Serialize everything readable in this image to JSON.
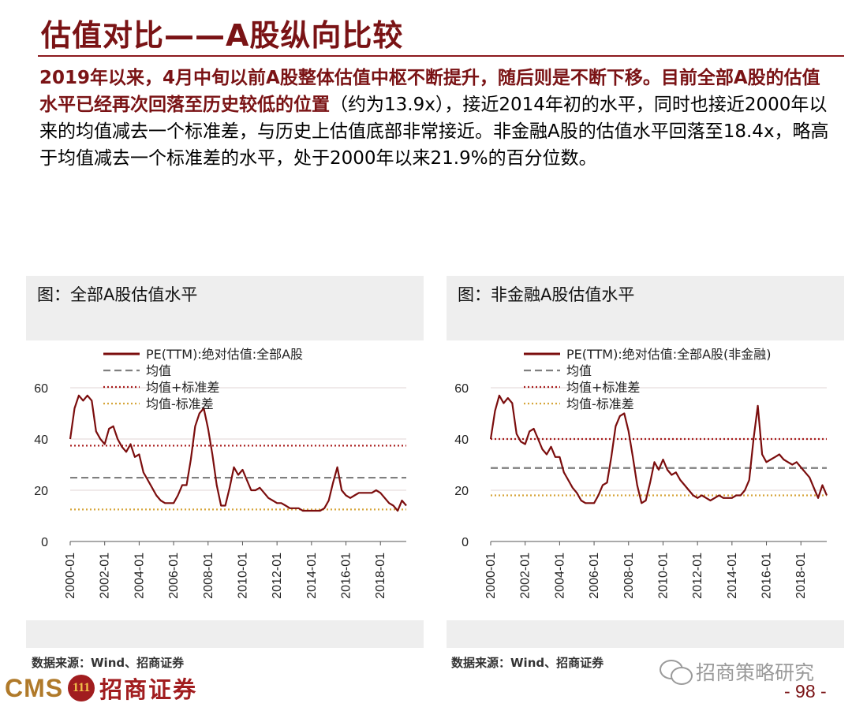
{
  "header": {
    "title": "估值对比——A股纵向比较"
  },
  "paragraph": {
    "highlight": "2019年以来，4月中旬以前A股整体估值中枢不断提升，随后则是不断下移。目前全部A股的估值水平已经再次回落至历史较低的位置",
    "rest": "（约为13.9x），接近2014年初的水平，同时也接近2000年以来的均值减去一个标准差，与历史上估值底部非常接近。非金融A股的估值水平回落至18.4x，略高于均值减去一个标准差的水平，处于2000年以来21.9%的百分位数。"
  },
  "panels": {
    "left": {
      "title": "图：全部A股估值水平",
      "source": "数据来源：Wind、招商证券"
    },
    "right": {
      "title": "图：非金融A股估值水平",
      "source": "数据来源：Wind、招商证券"
    }
  },
  "footer": {
    "logo_latin": "CMS",
    "logo_badge": "111",
    "logo_chinese": "招商证券",
    "wechat_account": "招商策略研究",
    "page_number": "- 98 -"
  },
  "colors": {
    "brand": "#7a1315",
    "series_pe": "#7b0d0d",
    "mean_line": "#7f7f7f",
    "mean_plus_std": "#a81c1c",
    "mean_minus_std": "#d6a53a"
  },
  "chart_data": [
    {
      "type": "line",
      "title": "图：全部A股估值水平",
      "x_tick_labels": [
        "2000-01",
        "2002-01",
        "2004-01",
        "2006-01",
        "2008-01",
        "2010-01",
        "2012-01",
        "2014-01",
        "2016-01",
        "2018-01"
      ],
      "xlim": [
        2000.0,
        2019.5
      ],
      "ylim": [
        0,
        60
      ],
      "y_ticks": [
        0,
        20,
        40,
        60
      ],
      "grid": "horizontal",
      "legend_position": "top-left",
      "series": [
        {
          "name": "PE(TTM):绝对估值:全部A股",
          "style": "solid",
          "x": [
            2000.0,
            2000.25,
            2000.5,
            2000.75,
            2001.0,
            2001.25,
            2001.5,
            2001.75,
            2002.0,
            2002.25,
            2002.5,
            2002.75,
            2003.0,
            2003.25,
            2003.5,
            2003.75,
            2004.0,
            2004.25,
            2004.5,
            2004.75,
            2005.0,
            2005.25,
            2005.5,
            2005.75,
            2006.0,
            2006.25,
            2006.5,
            2006.75,
            2007.0,
            2007.25,
            2007.5,
            2007.75,
            2008.0,
            2008.25,
            2008.5,
            2008.75,
            2009.0,
            2009.25,
            2009.5,
            2009.75,
            2010.0,
            2010.25,
            2010.5,
            2010.75,
            2011.0,
            2011.25,
            2011.5,
            2011.75,
            2012.0,
            2012.25,
            2012.5,
            2012.75,
            2013.0,
            2013.25,
            2013.5,
            2013.75,
            2014.0,
            2014.25,
            2014.5,
            2014.75,
            2015.0,
            2015.25,
            2015.5,
            2015.75,
            2016.0,
            2016.25,
            2016.5,
            2016.75,
            2017.0,
            2017.25,
            2017.5,
            2017.75,
            2018.0,
            2018.25,
            2018.5,
            2018.75,
            2019.0,
            2019.25,
            2019.5
          ],
          "values": [
            40,
            52,
            57,
            55,
            57,
            55,
            43,
            40,
            38,
            44,
            45,
            40,
            37,
            35,
            38,
            33,
            34,
            27,
            24,
            21,
            18,
            16,
            15,
            15,
            15,
            18,
            22,
            22,
            32,
            45,
            50,
            52,
            44,
            34,
            22,
            14,
            14,
            21,
            29,
            26,
            28,
            24,
            20,
            20,
            21,
            19,
            17,
            16,
            15,
            15,
            14,
            13,
            13,
            13,
            12,
            12,
            12,
            12,
            12,
            13,
            16,
            23,
            29,
            20,
            18,
            17,
            18,
            19,
            19,
            19,
            19,
            20,
            19,
            17,
            15,
            14,
            12,
            16,
            14
          ]
        },
        {
          "name": "均值",
          "style": "dashed",
          "values": [
            24.9
          ]
        },
        {
          "name": "均值+标准差",
          "style": "dotted",
          "values": [
            37.4
          ]
        },
        {
          "name": "均值-标准差",
          "style": "dotted",
          "values": [
            12.5
          ]
        }
      ]
    },
    {
      "type": "line",
      "title": "图：非金融A股估值水平",
      "x_tick_labels": [
        "2000-01",
        "2002-01",
        "2004-01",
        "2006-01",
        "2008-01",
        "2010-01",
        "2012-01",
        "2014-01",
        "2016-01",
        "2018-01"
      ],
      "xlim": [
        2000.0,
        2019.5
      ],
      "ylim": [
        0,
        60
      ],
      "y_ticks": [
        0,
        20,
        40,
        60
      ],
      "grid": "horizontal",
      "legend_position": "top-left",
      "series": [
        {
          "name": "PE(TTM):绝对估值:全部A股(非金融)",
          "style": "solid",
          "x": [
            2000.0,
            2000.25,
            2000.5,
            2000.75,
            2001.0,
            2001.25,
            2001.5,
            2001.75,
            2002.0,
            2002.25,
            2002.5,
            2002.75,
            2003.0,
            2003.25,
            2003.5,
            2003.75,
            2004.0,
            2004.25,
            2004.5,
            2004.75,
            2005.0,
            2005.25,
            2005.5,
            2005.75,
            2006.0,
            2006.25,
            2006.5,
            2006.75,
            2007.0,
            2007.25,
            2007.5,
            2007.75,
            2008.0,
            2008.25,
            2008.5,
            2008.75,
            2009.0,
            2009.25,
            2009.5,
            2009.75,
            2010.0,
            2010.25,
            2010.5,
            2010.75,
            2011.0,
            2011.25,
            2011.5,
            2011.75,
            2012.0,
            2012.25,
            2012.5,
            2012.75,
            2013.0,
            2013.25,
            2013.5,
            2013.75,
            2014.0,
            2014.25,
            2014.5,
            2014.75,
            2015.0,
            2015.25,
            2015.5,
            2015.75,
            2016.0,
            2016.25,
            2016.5,
            2016.75,
            2017.0,
            2017.25,
            2017.5,
            2017.75,
            2018.0,
            2018.25,
            2018.5,
            2018.75,
            2019.0,
            2019.25,
            2019.5
          ],
          "values": [
            40,
            51,
            57,
            54,
            56,
            54,
            42,
            39,
            38,
            43,
            44,
            40,
            36,
            34,
            37,
            33,
            33,
            27,
            24,
            21,
            19,
            16,
            15,
            15,
            15,
            18,
            22,
            23,
            33,
            45,
            49,
            50,
            43,
            33,
            22,
            15,
            16,
            23,
            31,
            28,
            32,
            28,
            26,
            27,
            24,
            22,
            20,
            18,
            17,
            18,
            17,
            16,
            17,
            18,
            17,
            17,
            17,
            18,
            18,
            20,
            24,
            40,
            53,
            34,
            31,
            32,
            33,
            34,
            32,
            31,
            30,
            31,
            29,
            27,
            25,
            21,
            17,
            22,
            18
          ]
        },
        {
          "name": "均值",
          "style": "dashed",
          "values": [
            28.7
          ]
        },
        {
          "name": "均值+标准差",
          "style": "dotted",
          "values": [
            40.0
          ]
        },
        {
          "name": "均值-标准差",
          "style": "dotted",
          "values": [
            18.0
          ]
        }
      ]
    }
  ]
}
